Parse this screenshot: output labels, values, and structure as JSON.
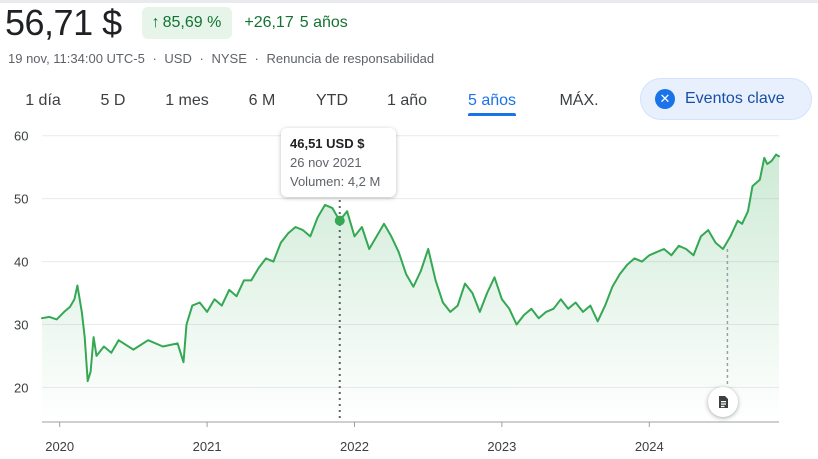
{
  "quote": {
    "price": "56,71 $",
    "change_percent": "85,69 %",
    "change_abs": "+26,17",
    "period": "5 años",
    "timestamp": "19 nov, 11:34:00 UTC-5",
    "currency": "USD",
    "exchange": "NYSE",
    "disclaimer": "Renuncia de responsabilidad",
    "separator": "·"
  },
  "tabs": [
    {
      "label": "1 día",
      "active": false
    },
    {
      "label": "5 D",
      "active": false
    },
    {
      "label": "1 mes",
      "active": false
    },
    {
      "label": "6 M",
      "active": false
    },
    {
      "label": "YTD",
      "active": false
    },
    {
      "label": "1 año",
      "active": false
    },
    {
      "label": "5 años",
      "active": true
    },
    {
      "label": "MÁX.",
      "active": false
    }
  ],
  "key_events_button": {
    "label": "Eventos clave",
    "icon": "close-circle-icon"
  },
  "tooltip": {
    "price": "46,51 USD $",
    "date": "26 nov 2021",
    "volume": "Volumen: 4,2 M"
  },
  "colors": {
    "positive": "#137333",
    "line": "#34a853",
    "accent": "#1a73e8",
    "chip_bg": "#e6f4ea"
  },
  "chart_data": {
    "type": "area",
    "y_ticks": [
      "60",
      "50",
      "40",
      "30",
      "20"
    ],
    "x_ticks": [
      "2020",
      "2021",
      "2022",
      "2023",
      "2024"
    ],
    "ylim": [
      14.5,
      62.5
    ],
    "xlim": [
      2019.88,
      2024.88
    ],
    "grid": true,
    "hover_point": {
      "x": 2021.9,
      "y": 46.51
    },
    "event_marker_x": 2024.53,
    "series": [
      {
        "points": [
          [
            2019.88,
            31
          ],
          [
            2019.93,
            31.2
          ],
          [
            2019.98,
            30.8
          ],
          [
            2020.03,
            32
          ],
          [
            2020.07,
            32.8
          ],
          [
            2020.1,
            34
          ],
          [
            2020.12,
            36.2
          ],
          [
            2020.15,
            32
          ],
          [
            2020.17,
            28
          ],
          [
            2020.19,
            21
          ],
          [
            2020.21,
            22.5
          ],
          [
            2020.23,
            28
          ],
          [
            2020.25,
            25
          ],
          [
            2020.3,
            26.5
          ],
          [
            2020.35,
            25.5
          ],
          [
            2020.4,
            27.5
          ],
          [
            2020.5,
            26
          ],
          [
            2020.6,
            27.5
          ],
          [
            2020.7,
            26.5
          ],
          [
            2020.8,
            27
          ],
          [
            2020.84,
            24
          ],
          [
            2020.86,
            30
          ],
          [
            2020.9,
            33
          ],
          [
            2020.95,
            33.5
          ],
          [
            2021.0,
            32
          ],
          [
            2021.05,
            34
          ],
          [
            2021.1,
            33
          ],
          [
            2021.15,
            35.5
          ],
          [
            2021.2,
            34.5
          ],
          [
            2021.25,
            37
          ],
          [
            2021.3,
            37
          ],
          [
            2021.35,
            39
          ],
          [
            2021.4,
            40.5
          ],
          [
            2021.45,
            40
          ],
          [
            2021.5,
            43
          ],
          [
            2021.55,
            44.5
          ],
          [
            2021.6,
            45.5
          ],
          [
            2021.65,
            45
          ],
          [
            2021.7,
            44
          ],
          [
            2021.75,
            47
          ],
          [
            2021.8,
            49
          ],
          [
            2021.85,
            48.5
          ],
          [
            2021.9,
            46.51
          ],
          [
            2021.95,
            48
          ],
          [
            2022.0,
            44
          ],
          [
            2022.05,
            45.5
          ],
          [
            2022.1,
            42
          ],
          [
            2022.15,
            44
          ],
          [
            2022.2,
            46
          ],
          [
            2022.25,
            44
          ],
          [
            2022.3,
            41.5
          ],
          [
            2022.35,
            38
          ],
          [
            2022.4,
            36
          ],
          [
            2022.45,
            38.5
          ],
          [
            2022.5,
            42
          ],
          [
            2022.55,
            37
          ],
          [
            2022.6,
            33.5
          ],
          [
            2022.65,
            32
          ],
          [
            2022.7,
            33
          ],
          [
            2022.75,
            36.5
          ],
          [
            2022.8,
            35
          ],
          [
            2022.85,
            32
          ],
          [
            2022.9,
            35
          ],
          [
            2022.95,
            37.5
          ],
          [
            2023.0,
            34
          ],
          [
            2023.05,
            32.5
          ],
          [
            2023.1,
            30
          ],
          [
            2023.15,
            31.5
          ],
          [
            2023.2,
            32.5
          ],
          [
            2023.25,
            31
          ],
          [
            2023.3,
            32
          ],
          [
            2023.35,
            32.5
          ],
          [
            2023.4,
            34
          ],
          [
            2023.45,
            32.5
          ],
          [
            2023.5,
            33.5
          ],
          [
            2023.55,
            32
          ],
          [
            2023.6,
            33
          ],
          [
            2023.65,
            30.5
          ],
          [
            2023.7,
            33
          ],
          [
            2023.75,
            36
          ],
          [
            2023.8,
            38
          ],
          [
            2023.85,
            39.5
          ],
          [
            2023.9,
            40.5
          ],
          [
            2023.95,
            40
          ],
          [
            2024.0,
            41
          ],
          [
            2024.05,
            41.5
          ],
          [
            2024.1,
            42
          ],
          [
            2024.15,
            41
          ],
          [
            2024.2,
            42.5
          ],
          [
            2024.25,
            42
          ],
          [
            2024.3,
            41
          ],
          [
            2024.35,
            44
          ],
          [
            2024.4,
            45
          ],
          [
            2024.45,
            43
          ],
          [
            2024.5,
            42
          ],
          [
            2024.55,
            44
          ],
          [
            2024.6,
            46.5
          ],
          [
            2024.63,
            46
          ],
          [
            2024.67,
            48
          ],
          [
            2024.7,
            52
          ],
          [
            2024.75,
            53
          ],
          [
            2024.78,
            56.5
          ],
          [
            2024.8,
            55.5
          ],
          [
            2024.83,
            56
          ],
          [
            2024.86,
            57
          ],
          [
            2024.88,
            56.71
          ]
        ]
      }
    ]
  }
}
